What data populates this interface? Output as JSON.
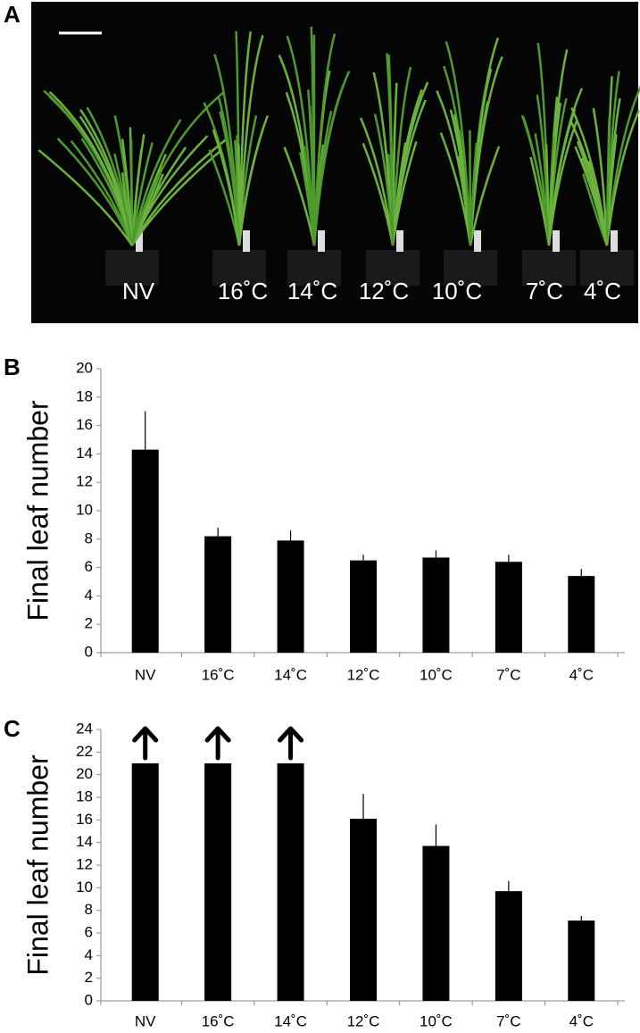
{
  "photo": {
    "panel_label": "A",
    "labels": [
      "NV",
      "16˚C",
      "14˚C",
      "12˚C",
      "10˚C",
      "7˚C",
      "4˚C"
    ]
  },
  "chart_data": [
    {
      "type": "bar",
      "panel_label": "B",
      "y_label": "Final leaf number",
      "categories": [
        "NV",
        "16˚C",
        "14˚C",
        "12˚C",
        "10˚C",
        "7˚C",
        "4˚C"
      ],
      "values": [
        14.3,
        8.2,
        7.9,
        6.5,
        6.7,
        6.4,
        5.4
      ],
      "errors": [
        2.7,
        0.6,
        0.7,
        0.4,
        0.5,
        0.5,
        0.5
      ],
      "color": "#000000",
      "ylim": [
        0,
        20
      ],
      "yticks": [
        0,
        2,
        4,
        6,
        8,
        10,
        12,
        14,
        16,
        18,
        20
      ]
    },
    {
      "type": "bar",
      "panel_label": "C",
      "y_label": "Final leaf number",
      "categories": [
        "NV",
        "16˚C",
        "14˚C",
        "12˚C",
        "10˚C",
        "7˚C",
        "4˚C"
      ],
      "values": [
        21,
        21,
        21,
        16.1,
        13.7,
        9.7,
        7.1
      ],
      "errors": [
        null,
        null,
        null,
        2.2,
        1.9,
        0.9,
        0.4
      ],
      "arrows": [
        true,
        true,
        true,
        false,
        false,
        false,
        false
      ],
      "color": "#000000",
      "ylim": [
        0,
        24
      ],
      "yticks": [
        0,
        2,
        4,
        6,
        8,
        10,
        12,
        14,
        16,
        18,
        20,
        22,
        24
      ]
    }
  ]
}
